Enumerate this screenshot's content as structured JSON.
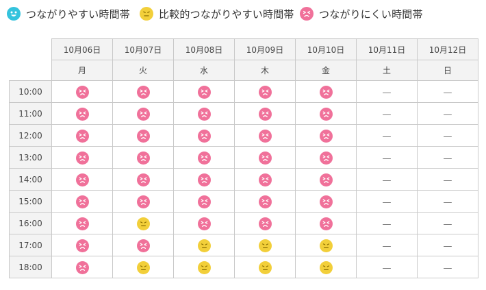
{
  "legend": [
    {
      "status": "good",
      "label": "つながりやすい時間帯",
      "icon": "smile-face-icon",
      "color": "#35c3dd"
    },
    {
      "status": "fair",
      "label": "比較的つながりやすい時間帯",
      "icon": "neutral-face-icon",
      "color": "#f2cf3a"
    },
    {
      "status": "busy",
      "label": "つながりにくい時間帯",
      "icon": "frown-face-icon",
      "color": "#f0719a"
    }
  ],
  "schedule": {
    "dates": [
      "10月06日",
      "10月07日",
      "10月08日",
      "10月09日",
      "10月10日",
      "10月11日",
      "10月12日"
    ],
    "weekdays": [
      "月",
      "火",
      "水",
      "木",
      "金",
      "土",
      "日"
    ],
    "no_service_mark": "—",
    "rows": [
      {
        "time": "10:00",
        "status": [
          "busy",
          "busy",
          "busy",
          "busy",
          "busy",
          "none",
          "none"
        ]
      },
      {
        "time": "11:00",
        "status": [
          "busy",
          "busy",
          "busy",
          "busy",
          "busy",
          "none",
          "none"
        ]
      },
      {
        "time": "12:00",
        "status": [
          "busy",
          "busy",
          "busy",
          "busy",
          "busy",
          "none",
          "none"
        ]
      },
      {
        "time": "13:00",
        "status": [
          "busy",
          "busy",
          "busy",
          "busy",
          "busy",
          "none",
          "none"
        ]
      },
      {
        "time": "14:00",
        "status": [
          "busy",
          "busy",
          "busy",
          "busy",
          "busy",
          "none",
          "none"
        ]
      },
      {
        "time": "15:00",
        "status": [
          "busy",
          "busy",
          "busy",
          "busy",
          "busy",
          "none",
          "none"
        ]
      },
      {
        "time": "16:00",
        "status": [
          "busy",
          "fair",
          "busy",
          "busy",
          "busy",
          "none",
          "none"
        ]
      },
      {
        "time": "17:00",
        "status": [
          "busy",
          "busy",
          "fair",
          "fair",
          "fair",
          "none",
          "none"
        ]
      },
      {
        "time": "18:00",
        "status": [
          "busy",
          "fair",
          "fair",
          "fair",
          "fair",
          "none",
          "none"
        ]
      }
    ]
  }
}
